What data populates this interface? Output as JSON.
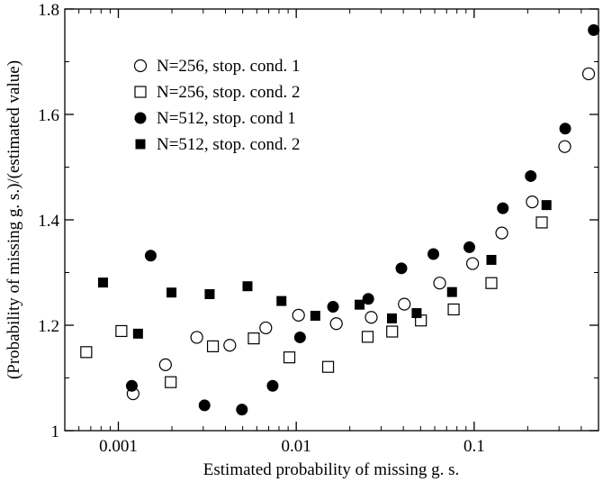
{
  "chart_data": {
    "type": "scatter",
    "title": "",
    "xlabel": "Estimated probability of missing g. s.",
    "ylabel": "(Probability of missing g. s.)/(estimated value)",
    "xscale": "log",
    "xlim": [
      0.0005,
      0.5
    ],
    "ylim": [
      1.0,
      1.8
    ],
    "x_ticks": [
      {
        "value": 0.001,
        "label": "0.001"
      },
      {
        "value": 0.01,
        "label": "0.01"
      },
      {
        "value": 0.1,
        "label": "0.1"
      }
    ],
    "y_ticks": [
      {
        "value": 1.0,
        "label": "1"
      },
      {
        "value": 1.2,
        "label": "1.2"
      },
      {
        "value": 1.4,
        "label": "1.4"
      },
      {
        "value": 1.6,
        "label": "1.6"
      },
      {
        "value": 1.8,
        "label": "1.8"
      }
    ],
    "legend_position": "top-left",
    "series": [
      {
        "name": "N=256, stop. cond. 1",
        "marker": "open-circle",
        "points": [
          [
            0.00121,
            1.07
          ],
          [
            0.00184,
            1.125
          ],
          [
            0.00276,
            1.177
          ],
          [
            0.00423,
            1.162
          ],
          [
            0.00674,
            1.195
          ],
          [
            0.0103,
            1.219
          ],
          [
            0.0168,
            1.203
          ],
          [
            0.0264,
            1.215
          ],
          [
            0.0405,
            1.24
          ],
          [
            0.064,
            1.28
          ],
          [
            0.098,
            1.317
          ],
          [
            0.143,
            1.375
          ],
          [
            0.212,
            1.434
          ],
          [
            0.323,
            1.539
          ],
          [
            0.44,
            1.677
          ]
        ]
      },
      {
        "name": "N=256, stop. cond. 2",
        "marker": "open-square",
        "points": [
          [
            0.00066,
            1.149
          ],
          [
            0.00104,
            1.189
          ],
          [
            0.00197,
            1.092
          ],
          [
            0.0034,
            1.16
          ],
          [
            0.00577,
            1.175
          ],
          [
            0.00915,
            1.139
          ],
          [
            0.0151,
            1.121
          ],
          [
            0.0252,
            1.178
          ],
          [
            0.0346,
            1.188
          ],
          [
            0.0502,
            1.209
          ],
          [
            0.0767,
            1.23
          ],
          [
            0.125,
            1.28
          ],
          [
            0.24,
            1.395
          ]
        ]
      },
      {
        "name": "N=512, stop. cond 1",
        "marker": "filled-circle",
        "points": [
          [
            0.00119,
            1.085
          ],
          [
            0.00152,
            1.332
          ],
          [
            0.00305,
            1.048
          ],
          [
            0.00495,
            1.04
          ],
          [
            0.00737,
            1.085
          ],
          [
            0.0105,
            1.177
          ],
          [
            0.0161,
            1.235
          ],
          [
            0.0254,
            1.25
          ],
          [
            0.039,
            1.308
          ],
          [
            0.059,
            1.335
          ],
          [
            0.094,
            1.348
          ],
          [
            0.145,
            1.422
          ],
          [
            0.208,
            1.483
          ],
          [
            0.325,
            1.573
          ],
          [
            0.47,
            1.76
          ]
        ]
      },
      {
        "name": "N=512, stop. cond. 2",
        "marker": "filled-square",
        "points": [
          [
            0.00082,
            1.281
          ],
          [
            0.00129,
            1.184
          ],
          [
            0.00199,
            1.262
          ],
          [
            0.00326,
            1.259
          ],
          [
            0.00532,
            1.274
          ],
          [
            0.00826,
            1.246
          ],
          [
            0.0128,
            1.218
          ],
          [
            0.0227,
            1.239
          ],
          [
            0.0345,
            1.213
          ],
          [
            0.0475,
            1.223
          ],
          [
            0.0751,
            1.263
          ],
          [
            0.125,
            1.324
          ],
          [
            0.255,
            1.428
          ]
        ]
      }
    ]
  }
}
